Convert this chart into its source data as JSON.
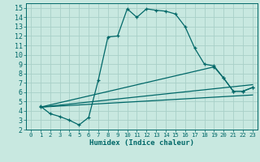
{
  "bg_color": "#c8e8e0",
  "grid_color": "#a8d0c8",
  "line_color": "#006868",
  "xlabel": "Humidex (Indice chaleur)",
  "xlim": [
    -0.5,
    23.5
  ],
  "ylim": [
    2,
    15.5
  ],
  "xticks": [
    0,
    1,
    2,
    3,
    4,
    5,
    6,
    7,
    8,
    9,
    10,
    11,
    12,
    13,
    14,
    15,
    16,
    17,
    18,
    19,
    20,
    21,
    22,
    23
  ],
  "yticks": [
    2,
    3,
    4,
    5,
    6,
    7,
    8,
    9,
    10,
    11,
    12,
    13,
    14,
    15
  ],
  "curve1_x": [
    1,
    2,
    3,
    4,
    5,
    6,
    7,
    8,
    9,
    10,
    11,
    12,
    13,
    14,
    15,
    16,
    17,
    18,
    19,
    20,
    21,
    22,
    23
  ],
  "curve1_y": [
    4.5,
    3.7,
    3.4,
    3.0,
    2.5,
    3.3,
    7.3,
    11.9,
    12.0,
    14.9,
    14.0,
    14.9,
    14.75,
    14.65,
    14.35,
    13.0,
    10.7,
    9.0,
    8.8,
    7.5,
    6.1,
    6.1,
    6.5
  ],
  "curve2_x": [
    1,
    23
  ],
  "curve2_y": [
    4.4,
    6.8
  ],
  "curve3_x": [
    1,
    23
  ],
  "curve3_y": [
    4.4,
    5.7
  ],
  "curve4_x": [
    1,
    19,
    20,
    21,
    22,
    23
  ],
  "curve4_y": [
    4.4,
    8.7,
    7.5,
    6.1,
    6.1,
    6.5
  ]
}
